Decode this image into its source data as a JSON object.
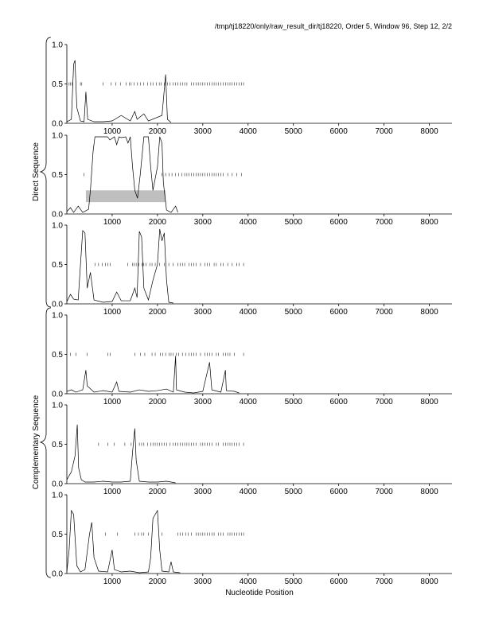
{
  "header": {
    "title": "/tmp/tj18220/only/raw_result_dir/tj18220, Order 5, Window 96, Step 12, 2/2"
  },
  "labels": {
    "xlabel": "Nucleotide Position",
    "group_direct": "Direct Sequence",
    "group_complementary": "Complementary Sequence"
  },
  "colors": {
    "line": "#000000",
    "highlight": "#bfbfbf"
  },
  "chart_data": {
    "type": "line",
    "xlim": [
      0,
      8500
    ],
    "ylim": [
      0,
      1.0
    ],
    "x_ticks": [
      "1000",
      "2000",
      "3000",
      "4000",
      "5000",
      "6000",
      "7000",
      "8000"
    ],
    "x_tick_values": [
      1000,
      2000,
      3000,
      4000,
      5000,
      6000,
      7000,
      8000
    ],
    "y_ticks": [
      "0.0",
      "0.5",
      "1.0"
    ],
    "y_tick_values": [
      0,
      0.5,
      1.0
    ],
    "panels": [
      {
        "group": "direct",
        "points": [
          [
            0,
            0.02
          ],
          [
            100,
            0.05
          ],
          [
            150,
            0.75
          ],
          [
            180,
            0.8
          ],
          [
            220,
            0.2
          ],
          [
            300,
            0.03
          ],
          [
            380,
            0.02
          ],
          [
            420,
            0.4
          ],
          [
            460,
            0.05
          ],
          [
            600,
            0.02
          ],
          [
            800,
            0.02
          ],
          [
            1000,
            0.03
          ],
          [
            1200,
            0.1
          ],
          [
            1400,
            0.03
          ],
          [
            1500,
            0.15
          ],
          [
            1550,
            0.05
          ],
          [
            1700,
            0.12
          ],
          [
            1800,
            0.03
          ],
          [
            2100,
            0.1
          ],
          [
            2180,
            0.62
          ],
          [
            2220,
            0.05
          ],
          [
            2300,
            0.01
          ]
        ],
        "marks": [
          50,
          80,
          120,
          300,
          330,
          800,
          980,
          1080,
          1180,
          1310,
          1380,
          1420,
          1480,
          1560,
          1620,
          1700,
          1780,
          1850,
          1900,
          1980,
          2040,
          2080,
          2150,
          2220,
          2280,
          2350,
          2400,
          2450,
          2500,
          2550,
          2600,
          2650,
          2750,
          2800,
          2850,
          2900,
          2950,
          3000,
          3050,
          3100,
          3150,
          3200,
          3250,
          3300,
          3350,
          3400,
          3450,
          3500,
          3550,
          3600,
          3650,
          3700,
          3750,
          3800,
          3850,
          3900
        ],
        "highlight": null
      },
      {
        "group": "direct",
        "points": [
          [
            0,
            0.03
          ],
          [
            80,
            0.08
          ],
          [
            150,
            0.02
          ],
          [
            250,
            0.1
          ],
          [
            350,
            0.02
          ],
          [
            480,
            0.06
          ],
          [
            520,
            0.3
          ],
          [
            580,
            0.8
          ],
          [
            620,
            0.98
          ],
          [
            800,
            0.98
          ],
          [
            900,
            0.98
          ],
          [
            950,
            0.94
          ],
          [
            1050,
            0.98
          ],
          [
            1100,
            0.88
          ],
          [
            1150,
            0.98
          ],
          [
            1200,
            0.97
          ],
          [
            1300,
            0.98
          ],
          [
            1350,
            0.9
          ],
          [
            1400,
            0.98
          ],
          [
            1450,
            0.6
          ],
          [
            1500,
            0.3
          ],
          [
            1560,
            0.2
          ],
          [
            1620,
            0.5
          ],
          [
            1700,
            0.98
          ],
          [
            1800,
            0.98
          ],
          [
            1850,
            0.6
          ],
          [
            1900,
            0.3
          ],
          [
            2000,
            0.6
          ],
          [
            2050,
            0.98
          ],
          [
            2100,
            0.9
          ],
          [
            2130,
            0.4
          ],
          [
            2200,
            0.05
          ],
          [
            2300,
            0.02
          ],
          [
            2400,
            0.1
          ],
          [
            2450,
            0.02
          ]
        ],
        "marks": [
          380,
          2100,
          2180,
          2260,
          2320,
          2400,
          2470,
          2540,
          2600,
          2650,
          2700,
          2750,
          2800,
          2850,
          2900,
          2950,
          3000,
          3050,
          3100,
          3150,
          3200,
          3250,
          3300,
          3350,
          3400,
          3450,
          3550,
          3650,
          3750,
          3850
        ],
        "highlight": {
          "x0": 420,
          "x1": 2180,
          "y0": 0.15,
          "y1": 0.3
        }
      },
      {
        "group": "direct",
        "points": [
          [
            0,
            0.03
          ],
          [
            80,
            0.12
          ],
          [
            150,
            0.06
          ],
          [
            250,
            0.05
          ],
          [
            350,
            0.93
          ],
          [
            400,
            0.9
          ],
          [
            450,
            0.2
          ],
          [
            520,
            0.4
          ],
          [
            600,
            0.05
          ],
          [
            800,
            0.02
          ],
          [
            1000,
            0.03
          ],
          [
            1100,
            0.15
          ],
          [
            1200,
            0.04
          ],
          [
            1400,
            0.04
          ],
          [
            1500,
            0.2
          ],
          [
            1550,
            0.08
          ],
          [
            1600,
            0.92
          ],
          [
            1650,
            0.85
          ],
          [
            1700,
            0.2
          ],
          [
            1800,
            0.05
          ],
          [
            1900,
            0.3
          ],
          [
            2000,
            0.5
          ],
          [
            2050,
            0.95
          ],
          [
            2100,
            0.8
          ],
          [
            2150,
            0.9
          ],
          [
            2200,
            0.3
          ],
          [
            2250,
            0.02
          ],
          [
            2350,
            0.01
          ]
        ],
        "marks": [
          620,
          700,
          780,
          850,
          900,
          960,
          1340,
          1450,
          1480,
          1530,
          1590,
          1660,
          1700,
          1750,
          1830,
          1880,
          1950,
          2050,
          2150,
          2250,
          2350,
          2450,
          2500,
          2550,
          2600,
          2700,
          2750,
          2800,
          2850,
          2950,
          3050,
          3100,
          3150,
          3250,
          3300,
          3400,
          3450,
          3550,
          3650,
          3750,
          3800,
          3900
        ],
        "highlight": null
      },
      {
        "group": "complementary",
        "points": [
          [
            0,
            0.03
          ],
          [
            100,
            0.05
          ],
          [
            200,
            0.02
          ],
          [
            350,
            0.05
          ],
          [
            420,
            0.3
          ],
          [
            450,
            0.1
          ],
          [
            600,
            0.02
          ],
          [
            800,
            0.04
          ],
          [
            1000,
            0.02
          ],
          [
            1100,
            0.15
          ],
          [
            1150,
            0.03
          ],
          [
            1400,
            0.02
          ],
          [
            1600,
            0.05
          ],
          [
            1800,
            0.03
          ],
          [
            2000,
            0.04
          ],
          [
            2200,
            0.06
          ],
          [
            2350,
            0.02
          ],
          [
            2400,
            0.48
          ],
          [
            2420,
            0.05
          ],
          [
            2600,
            0.02
          ],
          [
            2800,
            0.01
          ],
          [
            3000,
            0.03
          ],
          [
            3150,
            0.4
          ],
          [
            3200,
            0.05
          ],
          [
            3400,
            0.02
          ],
          [
            3500,
            0.3
          ],
          [
            3520,
            0.04
          ],
          [
            3700,
            0.03
          ],
          [
            3800,
            0.01
          ]
        ],
        "marks": [
          80,
          200,
          450,
          900,
          960,
          1500,
          1620,
          1720,
          1880,
          1950,
          2060,
          2120,
          2180,
          2260,
          2300,
          2350,
          2420,
          2470,
          2550,
          2620,
          2700,
          2750,
          2800,
          2850,
          2950,
          3050,
          3100,
          3150,
          3200,
          3300,
          3350,
          3450,
          3500,
          3550,
          3600,
          3700,
          3900
        ],
        "highlight": null
      },
      {
        "group": "complementary",
        "points": [
          [
            0,
            0.05
          ],
          [
            100,
            0.15
          ],
          [
            180,
            0.35
          ],
          [
            230,
            0.75
          ],
          [
            260,
            0.2
          ],
          [
            320,
            0.05
          ],
          [
            400,
            0.02
          ],
          [
            600,
            0.02
          ],
          [
            800,
            0.03
          ],
          [
            1000,
            0.02
          ],
          [
            1200,
            0.02
          ],
          [
            1400,
            0.03
          ],
          [
            1450,
            0.4
          ],
          [
            1500,
            0.7
          ],
          [
            1530,
            0.3
          ],
          [
            1600,
            0.03
          ],
          [
            1800,
            0.02
          ],
          [
            2000,
            0.02
          ],
          [
            2200,
            0.03
          ],
          [
            2400,
            0.01
          ]
        ],
        "marks": [
          700,
          900,
          1050,
          1280,
          1420,
          1600,
          1650,
          1700,
          1780,
          1850,
          1900,
          1950,
          2000,
          2050,
          2100,
          2150,
          2200,
          2280,
          2350,
          2400,
          2450,
          2500,
          2550,
          2600,
          2650,
          2700,
          2750,
          2800,
          2850,
          2950,
          3000,
          3050,
          3100,
          3150,
          3200,
          3300,
          3350,
          3450,
          3500,
          3550,
          3600,
          3650,
          3700,
          3750,
          3800,
          3900
        ],
        "highlight": null
      },
      {
        "group": "complementary",
        "points": [
          [
            0,
            0.02
          ],
          [
            50,
            0.3
          ],
          [
            100,
            0.8
          ],
          [
            150,
            0.75
          ],
          [
            220,
            0.1
          ],
          [
            300,
            0.02
          ],
          [
            400,
            0.05
          ],
          [
            500,
            0.5
          ],
          [
            550,
            0.65
          ],
          [
            600,
            0.2
          ],
          [
            700,
            0.03
          ],
          [
            900,
            0.02
          ],
          [
            1000,
            0.3
          ],
          [
            1050,
            0.05
          ],
          [
            1200,
            0.02
          ],
          [
            1400,
            0.03
          ],
          [
            1600,
            0.01
          ],
          [
            1800,
            0.02
          ],
          [
            1850,
            0.2
          ],
          [
            1900,
            0.7
          ],
          [
            1950,
            0.75
          ],
          [
            2000,
            0.8
          ],
          [
            2050,
            0.3
          ],
          [
            2100,
            0.03
          ],
          [
            2250,
            0.02
          ],
          [
            2300,
            0.15
          ],
          [
            2350,
            0.02
          ],
          [
            2500,
            0.01
          ]
        ],
        "marks": [
          850,
          1120,
          1500,
          1580,
          1650,
          1700,
          1800,
          2100,
          2450,
          2500,
          2560,
          2620,
          2680,
          2750,
          2850,
          2900,
          2950,
          3000,
          3050,
          3100,
          3150,
          3200,
          3250,
          3350,
          3400,
          3450,
          3550,
          3600,
          3650,
          3700,
          3750,
          3800,
          3850,
          3900
        ],
        "highlight": null
      }
    ]
  }
}
